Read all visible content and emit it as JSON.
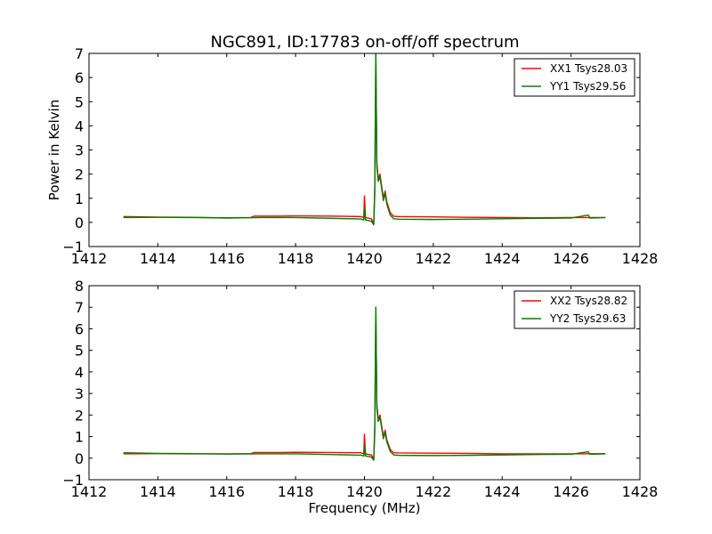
{
  "figure": {
    "title": "NGC891, ID:17783 on-off/off spectrum"
  },
  "chart_data": [
    {
      "type": "line",
      "title": "NGC891, ID:17783 on-off/off spectrum",
      "xlabel": "",
      "ylabel": "Power in Kelvin",
      "xlim": [
        1412,
        1428
      ],
      "ylim": [
        -1,
        7
      ],
      "xticks": [
        "1412",
        "1414",
        "1416",
        "1418",
        "1420",
        "1422",
        "1424",
        "1426",
        "1428"
      ],
      "yticks": [
        "−1",
        "0",
        "1",
        "2",
        "3",
        "4",
        "5",
        "6",
        "7"
      ],
      "grid": false,
      "legend_position": "top-right",
      "series": [
        {
          "name": "XX1 Tsys28.03",
          "color": "#ff0000",
          "points": [
            [
              1413.0,
              0.2
            ],
            [
              1414.0,
              0.21
            ],
            [
              1415.0,
              0.2
            ],
            [
              1416.0,
              0.19
            ],
            [
              1416.7,
              0.2
            ],
            [
              1416.8,
              0.26
            ],
            [
              1417.5,
              0.26
            ],
            [
              1418.0,
              0.27
            ],
            [
              1419.0,
              0.26
            ],
            [
              1419.9,
              0.24
            ],
            [
              1419.98,
              0.2
            ],
            [
              1420.0,
              1.1
            ],
            [
              1420.03,
              0.2
            ],
            [
              1420.2,
              0.15
            ],
            [
              1420.27,
              -0.05
            ],
            [
              1420.3,
              1.5
            ],
            [
              1420.33,
              7.0
            ],
            [
              1420.36,
              2.5
            ],
            [
              1420.4,
              1.8
            ],
            [
              1420.45,
              2.0
            ],
            [
              1420.5,
              1.5
            ],
            [
              1420.55,
              1.0
            ],
            [
              1420.6,
              1.3
            ],
            [
              1420.65,
              0.85
            ],
            [
              1420.75,
              0.4
            ],
            [
              1420.85,
              0.25
            ],
            [
              1421.0,
              0.24
            ],
            [
              1422.0,
              0.23
            ],
            [
              1423.0,
              0.21
            ],
            [
              1424.0,
              0.2
            ],
            [
              1425.0,
              0.19
            ],
            [
              1426.0,
              0.2
            ],
            [
              1427.0,
              0.2
            ]
          ]
        },
        {
          "name": "YY1 Tsys29.56",
          "color": "#008000",
          "points": [
            [
              1413.0,
              0.24
            ],
            [
              1414.0,
              0.22
            ],
            [
              1415.0,
              0.21
            ],
            [
              1416.0,
              0.18
            ],
            [
              1417.0,
              0.2
            ],
            [
              1418.0,
              0.2
            ],
            [
              1419.0,
              0.17
            ],
            [
              1419.9,
              0.14
            ],
            [
              1419.98,
              0.1
            ],
            [
              1420.0,
              0.6
            ],
            [
              1420.03,
              0.1
            ],
            [
              1420.2,
              0.05
            ],
            [
              1420.27,
              -0.1
            ],
            [
              1420.3,
              1.2
            ],
            [
              1420.33,
              7.0
            ],
            [
              1420.36,
              2.3
            ],
            [
              1420.4,
              1.7
            ],
            [
              1420.45,
              1.9
            ],
            [
              1420.5,
              1.4
            ],
            [
              1420.55,
              0.9
            ],
            [
              1420.6,
              1.2
            ],
            [
              1420.65,
              0.75
            ],
            [
              1420.75,
              0.3
            ],
            [
              1420.85,
              0.15
            ],
            [
              1421.0,
              0.13
            ],
            [
              1422.0,
              0.12
            ],
            [
              1423.0,
              0.13
            ],
            [
              1424.0,
              0.15
            ],
            [
              1425.0,
              0.17
            ],
            [
              1426.0,
              0.18
            ],
            [
              1426.5,
              0.3
            ],
            [
              1426.55,
              0.18
            ],
            [
              1427.0,
              0.2
            ]
          ]
        }
      ]
    },
    {
      "type": "line",
      "title": "",
      "xlabel": "Frequency (MHz)",
      "ylabel": "",
      "xlim": [
        1412,
        1428
      ],
      "ylim": [
        -1,
        8
      ],
      "xticks": [
        "1412",
        "1414",
        "1416",
        "1418",
        "1420",
        "1422",
        "1424",
        "1426",
        "1428"
      ],
      "yticks": [
        "−1",
        "0",
        "1",
        "2",
        "3",
        "4",
        "5",
        "6",
        "7",
        "8"
      ],
      "grid": false,
      "legend_position": "top-right",
      "series": [
        {
          "name": "XX2 Tsys28.82",
          "color": "#ff0000",
          "points": [
            [
              1413.0,
              0.2
            ],
            [
              1414.0,
              0.21
            ],
            [
              1415.0,
              0.2
            ],
            [
              1416.0,
              0.2
            ],
            [
              1416.7,
              0.21
            ],
            [
              1416.8,
              0.26
            ],
            [
              1417.5,
              0.26
            ],
            [
              1418.0,
              0.27
            ],
            [
              1419.0,
              0.26
            ],
            [
              1419.9,
              0.25
            ],
            [
              1419.98,
              0.2
            ],
            [
              1420.0,
              1.1
            ],
            [
              1420.03,
              0.2
            ],
            [
              1420.2,
              0.15
            ],
            [
              1420.27,
              -0.05
            ],
            [
              1420.3,
              1.5
            ],
            [
              1420.33,
              7.0
            ],
            [
              1420.36,
              2.5
            ],
            [
              1420.4,
              1.8
            ],
            [
              1420.45,
              2.0
            ],
            [
              1420.5,
              1.5
            ],
            [
              1420.55,
              1.0
            ],
            [
              1420.6,
              1.3
            ],
            [
              1420.65,
              0.85
            ],
            [
              1420.75,
              0.4
            ],
            [
              1420.85,
              0.25
            ],
            [
              1421.0,
              0.24
            ],
            [
              1422.0,
              0.23
            ],
            [
              1423.0,
              0.22
            ],
            [
              1424.0,
              0.2
            ],
            [
              1425.0,
              0.2
            ],
            [
              1426.0,
              0.2
            ],
            [
              1427.0,
              0.21
            ]
          ]
        },
        {
          "name": "YY2 Tsys29.63",
          "color": "#008000",
          "points": [
            [
              1413.0,
              0.25
            ],
            [
              1414.0,
              0.22
            ],
            [
              1415.0,
              0.21
            ],
            [
              1416.0,
              0.19
            ],
            [
              1417.0,
              0.2
            ],
            [
              1418.0,
              0.2
            ],
            [
              1419.0,
              0.17
            ],
            [
              1419.9,
              0.14
            ],
            [
              1419.98,
              0.1
            ],
            [
              1420.0,
              0.6
            ],
            [
              1420.03,
              0.1
            ],
            [
              1420.2,
              0.05
            ],
            [
              1420.27,
              -0.1
            ],
            [
              1420.3,
              1.2
            ],
            [
              1420.33,
              7.0
            ],
            [
              1420.36,
              2.3
            ],
            [
              1420.4,
              1.7
            ],
            [
              1420.45,
              1.9
            ],
            [
              1420.5,
              1.4
            ],
            [
              1420.55,
              0.9
            ],
            [
              1420.6,
              1.2
            ],
            [
              1420.65,
              0.75
            ],
            [
              1420.75,
              0.3
            ],
            [
              1420.85,
              0.15
            ],
            [
              1421.0,
              0.13
            ],
            [
              1422.0,
              0.12
            ],
            [
              1423.0,
              0.13
            ],
            [
              1424.0,
              0.15
            ],
            [
              1425.0,
              0.17
            ],
            [
              1426.0,
              0.18
            ],
            [
              1426.5,
              0.3
            ],
            [
              1426.55,
              0.18
            ],
            [
              1427.0,
              0.2
            ]
          ]
        }
      ]
    }
  ]
}
